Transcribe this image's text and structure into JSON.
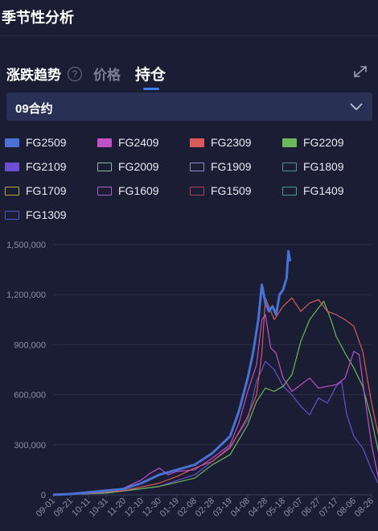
{
  "header": {
    "title": "季节性分析"
  },
  "tabs": [
    {
      "label": "涨跌趋势"
    },
    {
      "label": "价格"
    },
    {
      "label": "持仓"
    }
  ],
  "help_icon": {
    "glyph": "?"
  },
  "contract_select": {
    "value": "09合约"
  },
  "colors": {
    "background": "#1a1d33",
    "accent": "#3f7cf1"
  },
  "legend": [
    {
      "label": "FG2509",
      "color": "#4a72d4",
      "filled": true
    },
    {
      "label": "FG2409",
      "color": "#c050c8",
      "filled": true
    },
    {
      "label": "FG2309",
      "color": "#d85a5a",
      "filled": true
    },
    {
      "label": "FG2209",
      "color": "#6cb85a",
      "filled": true
    },
    {
      "label": "FG2109",
      "color": "#6a4fd0",
      "filled": true
    },
    {
      "label": "FG2009",
      "color": "#8ab8a0",
      "filled": false
    },
    {
      "label": "FG1909",
      "color": "#8a8fc8",
      "filled": false
    },
    {
      "label": "FG1809",
      "color": "#5a8aa0",
      "filled": false
    },
    {
      "label": "FG1709",
      "color": "#b8a840",
      "filled": false
    },
    {
      "label": "FG1609",
      "color": "#b060c0",
      "filled": false
    },
    {
      "label": "FG1509",
      "color": "#b04060",
      "filled": false
    },
    {
      "label": "FG1409",
      "color": "#4a9a90",
      "filled": false
    },
    {
      "label": "FG1309",
      "color": "#4a5ac8",
      "filled": false
    }
  ],
  "chart_data": {
    "type": "line",
    "y_ticks": [
      "0",
      "300,000",
      "600,000",
      "900,000",
      "1,200,000",
      "1,500,000"
    ],
    "ylim": [
      0,
      1500000
    ],
    "x_ticks": [
      "09-01",
      "09-21",
      "10-11",
      "10-31",
      "11-20",
      "12-10",
      "12-30",
      "01-19",
      "02-08",
      "02-28",
      "03-19",
      "04-08",
      "04-28",
      "05-18",
      "06-07",
      "06-27",
      "07-17",
      "08-06",
      "08-26"
    ],
    "grid": true,
    "series": [
      {
        "name": "FG2509",
        "color": "#4a72d4",
        "width": 3,
        "points": [
          [
            0,
            0
          ],
          [
            1,
            5000
          ],
          [
            2,
            15000
          ],
          [
            3,
            25000
          ],
          [
            4,
            35000
          ],
          [
            5,
            70000
          ],
          [
            6,
            120000
          ],
          [
            7,
            150000
          ],
          [
            8,
            180000
          ],
          [
            9,
            250000
          ],
          [
            10,
            350000
          ],
          [
            10.5,
            500000
          ],
          [
            11,
            700000
          ],
          [
            11.3,
            850000
          ],
          [
            11.6,
            1050000
          ],
          [
            11.8,
            1260000
          ],
          [
            12,
            1150000
          ],
          [
            12.2,
            1100000
          ],
          [
            12.4,
            1130000
          ],
          [
            12.6,
            1080000
          ],
          [
            12.8,
            1200000
          ],
          [
            13,
            1230000
          ],
          [
            13.2,
            1300000
          ],
          [
            13.3,
            1460000
          ],
          [
            13.4,
            1400000
          ]
        ]
      },
      {
        "name": "FG2409",
        "color": "#c050c8",
        "width": 1.2,
        "points": [
          [
            0,
            0
          ],
          [
            1,
            5000
          ],
          [
            2,
            10000
          ],
          [
            3,
            20000
          ],
          [
            4,
            40000
          ],
          [
            5,
            90000
          ],
          [
            5.5,
            130000
          ],
          [
            6,
            160000
          ],
          [
            6.5,
            120000
          ],
          [
            7,
            140000
          ],
          [
            8,
            150000
          ],
          [
            9,
            220000
          ],
          [
            10,
            300000
          ],
          [
            10.5,
            430000
          ],
          [
            11,
            620000
          ],
          [
            11.5,
            780000
          ],
          [
            11.8,
            1050000
          ],
          [
            12,
            1080000
          ],
          [
            12.3,
            880000
          ],
          [
            12.6,
            850000
          ],
          [
            13,
            700000
          ],
          [
            13.5,
            620000
          ],
          [
            14,
            660000
          ],
          [
            14.5,
            700000
          ],
          [
            15,
            640000
          ],
          [
            15.5,
            650000
          ],
          [
            16,
            660000
          ],
          [
            16.5,
            700000
          ],
          [
            17,
            860000
          ],
          [
            17.3,
            840000
          ],
          [
            17.6,
            600000
          ],
          [
            18,
            300000
          ],
          [
            18.5,
            40000
          ],
          [
            19,
            10000
          ]
        ]
      },
      {
        "name": "FG2309",
        "color": "#d85a5a",
        "width": 1.2,
        "points": [
          [
            0,
            0
          ],
          [
            2,
            8000
          ],
          [
            4,
            25000
          ],
          [
            6,
            70000
          ],
          [
            7,
            110000
          ],
          [
            8,
            160000
          ],
          [
            9,
            200000
          ],
          [
            10,
            280000
          ],
          [
            11,
            470000
          ],
          [
            11.5,
            600000
          ],
          [
            11.8,
            850000
          ],
          [
            12,
            1180000
          ],
          [
            12.5,
            1050000
          ],
          [
            13,
            1130000
          ],
          [
            13.5,
            1180000
          ],
          [
            14,
            1100000
          ],
          [
            14.5,
            1150000
          ],
          [
            15,
            1170000
          ],
          [
            15.5,
            1100000
          ],
          [
            16,
            1080000
          ],
          [
            16.5,
            1050000
          ],
          [
            17,
            1010000
          ],
          [
            17.5,
            860000
          ],
          [
            18,
            550000
          ],
          [
            18.5,
            300000
          ],
          [
            19,
            30000
          ]
        ]
      },
      {
        "name": "FG2209",
        "color": "#6cb85a",
        "width": 1.2,
        "points": [
          [
            0,
            0
          ],
          [
            3,
            10000
          ],
          [
            6,
            50000
          ],
          [
            8,
            100000
          ],
          [
            9,
            180000
          ],
          [
            10,
            240000
          ],
          [
            11,
            420000
          ],
          [
            11.5,
            560000
          ],
          [
            12,
            640000
          ],
          [
            12.5,
            620000
          ],
          [
            13,
            650000
          ],
          [
            13.5,
            720000
          ],
          [
            14,
            920000
          ],
          [
            14.5,
            1050000
          ],
          [
            15,
            1120000
          ],
          [
            15.3,
            1160000
          ],
          [
            15.7,
            1050000
          ],
          [
            16,
            950000
          ],
          [
            16.5,
            850000
          ],
          [
            17,
            760000
          ],
          [
            17.5,
            650000
          ],
          [
            18,
            450000
          ],
          [
            18.5,
            200000
          ],
          [
            19,
            20000
          ]
        ]
      },
      {
        "name": "FG2109",
        "color": "#6a4fd0",
        "width": 1.2,
        "points": [
          [
            0,
            0
          ],
          [
            3,
            10000
          ],
          [
            6,
            50000
          ],
          [
            8,
            120000
          ],
          [
            9,
            200000
          ],
          [
            10,
            290000
          ],
          [
            11,
            450000
          ],
          [
            11.5,
            680000
          ],
          [
            12,
            800000
          ],
          [
            12.5,
            750000
          ],
          [
            13,
            650000
          ],
          [
            13.5,
            600000
          ],
          [
            14,
            530000
          ],
          [
            14.5,
            480000
          ],
          [
            15,
            580000
          ],
          [
            15.5,
            550000
          ],
          [
            16,
            650000
          ],
          [
            16.3,
            680000
          ],
          [
            16.6,
            480000
          ],
          [
            17,
            350000
          ],
          [
            17.5,
            280000
          ],
          [
            18,
            150000
          ],
          [
            18.5,
            40000
          ],
          [
            19,
            5000
          ]
        ]
      }
    ]
  }
}
